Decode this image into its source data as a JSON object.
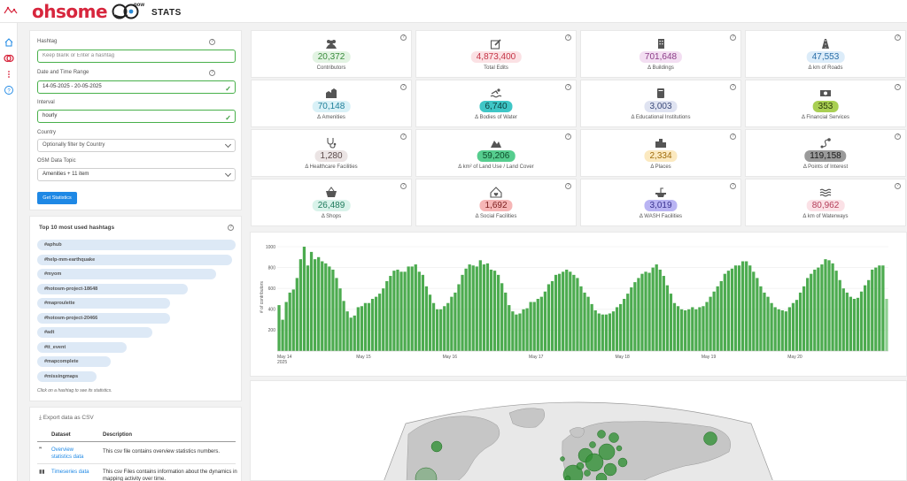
{
  "brand": {
    "name": "ohsome",
    "sub": "now",
    "stats": "STATS"
  },
  "form": {
    "hashtag_label": "Hashtag",
    "hashtag_placeholder": "Keep blank or Enter a hashtag",
    "date_label": "Date and Time Range",
    "date_value": "14-05-2025 - 20-05-2025",
    "interval_label": "Interval",
    "interval_value": "hourly",
    "country_label": "Country",
    "country_placeholder": "Optionally filter by Country",
    "topic_label": "OSM Data Topic",
    "topic_value": "Amenities + 11 item",
    "submit_label": "Get Statistics"
  },
  "hashtags": {
    "title": "Top 10 most used hashtags",
    "items": [
      "#aphub",
      "#help-mm-earthquake",
      "#myom",
      "#hotosm-project-18648",
      "#maproulette",
      "#hotosm-project-20466",
      "#adt",
      "#tt_event",
      "#mapcomplete",
      "#missingmaps"
    ],
    "shares": [
      1.0,
      0.98,
      0.9,
      0.76,
      0.67,
      0.67,
      0.58,
      0.45,
      0.37,
      0.3
    ],
    "note": "Click on a hashtag to see its statistics."
  },
  "export": {
    "title": "Export data as CSV",
    "col_dataset": "Dataset",
    "col_description": "Description",
    "rows": [
      {
        "name": "Overview statistics data",
        "description": "This csv file contains overview statistics numbers."
      },
      {
        "name": "Timeseries data",
        "description": "This csv Files contains information about the dynamics in mapping activity over time."
      }
    ]
  },
  "stats": [
    {
      "value": "20,372",
      "label": "Contributors",
      "icon": "users-icon",
      "bg": "#e2f3e2",
      "fg": "#3a8c3d"
    },
    {
      "value": "4,873,400",
      "label": "Total Edits",
      "icon": "edit-icon",
      "bg": "#fbe1e4",
      "fg": "#c43446"
    },
    {
      "value": "701,648",
      "label": "Δ Buildings",
      "icon": "building-icon",
      "bg": "#f3def2",
      "fg": "#8b3d88"
    },
    {
      "value": "47,553",
      "label": "Δ km of Roads",
      "icon": "road-icon",
      "bg": "#dcecf9",
      "fg": "#2b6fa8"
    },
    {
      "value": "70,148",
      "label": "Δ Amenities",
      "icon": "amenities-icon",
      "bg": "#d9f1f7",
      "fg": "#1f7f99"
    },
    {
      "value": "6,740",
      "label": "Δ Bodies of Water",
      "icon": "swimmer-icon",
      "bg": "#3fc6c6",
      "fg": "#0a3f3f"
    },
    {
      "value": "3,003",
      "label": "Δ Educational Institutions",
      "icon": "book-icon",
      "bg": "#dfe3f1",
      "fg": "#3b4a7a"
    },
    {
      "value": "353",
      "label": "Δ Financial Services",
      "icon": "money-icon",
      "bg": "#a9cf53",
      "fg": "#2e3d0c"
    },
    {
      "value": "1,280",
      "label": "Δ Healthcare Facilities",
      "icon": "stethoscope-icon",
      "bg": "#ebe4e4",
      "fg": "#5a4a4a"
    },
    {
      "value": "59,206",
      "label": "Δ km² of Land Use / Land Cover",
      "icon": "mountain-icon",
      "bg": "#56cd8e",
      "fg": "#0d4a2a"
    },
    {
      "value": "2,334",
      "label": "Δ Places",
      "icon": "city-icon",
      "bg": "#fbe9c0",
      "fg": "#a06c0c"
    },
    {
      "value": "119,158",
      "label": "Δ Points of Interest",
      "icon": "route-icon",
      "bg": "#9a9a9a",
      "fg": "#1a1a1a"
    },
    {
      "value": "26,489",
      "label": "Δ Shops",
      "icon": "basket-icon",
      "bg": "#d9f3ea",
      "fg": "#1e7a5b"
    },
    {
      "value": "1,692",
      "label": "Δ Social Facilities",
      "icon": "home-heart-icon",
      "bg": "#f6b6b6",
      "fg": "#7a1d1d"
    },
    {
      "value": "3,019",
      "label": "Δ WASH Facilities",
      "icon": "sink-icon",
      "bg": "#b9b4f3",
      "fg": "#3a3290"
    },
    {
      "value": "80,962",
      "label": "Δ km of Waterways",
      "icon": "water-icon",
      "bg": "#fbe1e6",
      "fg": "#b43d58"
    }
  ],
  "chart_data": {
    "type": "bar",
    "title": "",
    "xlabel": "",
    "ylabel": "# of contributors",
    "ylim": [
      0,
      1000
    ],
    "yticks": [
      200,
      400,
      600,
      800,
      1000
    ],
    "xtick_labels": [
      "May 14\n2025",
      "May 15",
      "May 16",
      "May 17",
      "May 18",
      "May 19",
      "May 20"
    ],
    "interval": "hourly",
    "start": "2025-05-14 00:00",
    "color": "#4cab4f",
    "values": [
      440,
      300,
      470,
      560,
      590,
      700,
      880,
      1000,
      820,
      950,
      880,
      900,
      860,
      840,
      810,
      780,
      700,
      600,
      480,
      380,
      320,
      340,
      420,
      430,
      460,
      460,
      500,
      520,
      550,
      600,
      670,
      720,
      770,
      780,
      760,
      760,
      810,
      810,
      830,
      760,
      730,
      620,
      540,
      460,
      400,
      400,
      430,
      460,
      520,
      560,
      640,
      730,
      790,
      830,
      820,
      810,
      870,
      830,
      840,
      780,
      770,
      730,
      650,
      560,
      440,
      380,
      350,
      360,
      400,
      410,
      470,
      470,
      500,
      520,
      570,
      640,
      670,
      730,
      740,
      760,
      780,
      760,
      730,
      700,
      620,
      560,
      520,
      450,
      390,
      360,
      350,
      350,
      360,
      380,
      420,
      450,
      500,
      550,
      610,
      660,
      700,
      740,
      760,
      750,
      800,
      830,
      780,
      720,
      630,
      550,
      460,
      430,
      400,
      390,
      400,
      420,
      400,
      420,
      430,
      470,
      520,
      570,
      620,
      670,
      740,
      770,
      790,
      820,
      820,
      860,
      860,
      820,
      760,
      700,
      620,
      560,
      520,
      460,
      420,
      400,
      390,
      380,
      420,
      460,
      490,
      560,
      620,
      700,
      740,
      780,
      800,
      830,
      880,
      870,
      840,
      770,
      680,
      600,
      560,
      520,
      500,
      510,
      570,
      630,
      680,
      780,
      800,
      820,
      820,
      500
    ]
  }
}
